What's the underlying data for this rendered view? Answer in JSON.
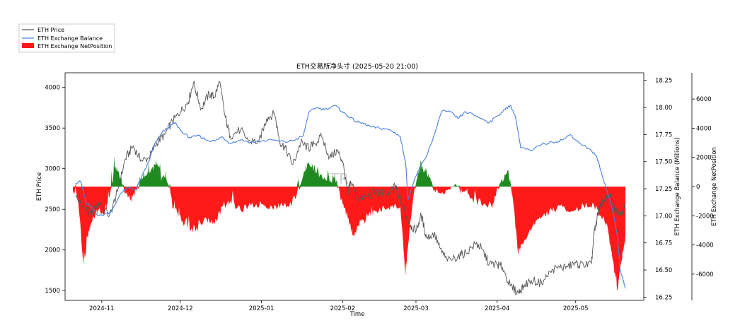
{
  "chart_data": {
    "type": "line",
    "title": "ETH交易所净头寸 (2025-05-20 21:00)",
    "xlabel": "Time",
    "ylabel_left": "ETH Price",
    "ylabel_right1": "ETH Exchange Balance (Millions)",
    "ylabel_right2": "ETH Exchange NetPosition",
    "xlim": [
      "2024-10-18",
      "2025-05-27"
    ],
    "x_ticks": [
      {
        "date": "2024-11-01",
        "label": "2024-11"
      },
      {
        "date": "2024-12-01",
        "label": "2024-12"
      },
      {
        "date": "2025-01-01",
        "label": "2025-01"
      },
      {
        "date": "2025-02-01",
        "label": "2025-02"
      },
      {
        "date": "2025-03-01",
        "label": "2025-03"
      },
      {
        "date": "2025-04-01",
        "label": "2025-04"
      },
      {
        "date": "2025-05-01",
        "label": "2025-05"
      }
    ],
    "price_axis": {
      "ylim": [
        1380,
        4180
      ],
      "ticks": [
        1500,
        2000,
        2500,
        3000,
        3500,
        4000
      ]
    },
    "balance_axis": {
      "ylim": [
        16.22,
        18.32
      ],
      "ticks": [
        "16.25",
        "16.50",
        "16.75",
        "17.00",
        "17.25",
        "17.50",
        "17.75",
        "18.00",
        "18.25"
      ]
    },
    "netposition_axis": {
      "ylim": [
        -7800,
        7800
      ],
      "ticks": [
        -6000,
        -4000,
        -2000,
        0,
        2000,
        4000,
        6000
      ]
    },
    "legend": {
      "placement": "top-left-outside",
      "entries": [
        {
          "label": "ETH Price",
          "color": "#555555",
          "kind": "line"
        },
        {
          "label": "ETH Exchange Balance",
          "color": "#4a7fe0",
          "kind": "line"
        },
        {
          "label": "ETH Exchange NetPosition",
          "color": "#ff1a1a",
          "kind": "patch"
        }
      ]
    },
    "colors": {
      "price": "#555555",
      "balance": "#4a7fe0",
      "net_negative": "#ff1a1a",
      "net_positive": "#1f8a1f"
    },
    "watermark": "TR",
    "series": [
      {
        "name": "ETH Price",
        "axis": "price",
        "points": [
          [
            "2024-10-22",
            2660
          ],
          [
            "2024-10-25",
            2520
          ],
          [
            "2024-10-28",
            2440
          ],
          [
            "2024-10-31",
            2590
          ],
          [
            "2024-11-04",
            2420
          ],
          [
            "2024-11-07",
            2720
          ],
          [
            "2024-11-10",
            3120
          ],
          [
            "2024-11-13",
            3280
          ],
          [
            "2024-11-16",
            3100
          ],
          [
            "2024-11-19",
            3130
          ],
          [
            "2024-11-22",
            3320
          ],
          [
            "2024-11-25",
            3420
          ],
          [
            "2024-11-28",
            3580
          ],
          [
            "2024-12-01",
            3700
          ],
          [
            "2024-12-04",
            3820
          ],
          [
            "2024-12-06",
            4060
          ],
          [
            "2024-12-09",
            3740
          ],
          [
            "2024-12-12",
            3920
          ],
          [
            "2024-12-14",
            3880
          ],
          [
            "2024-12-16",
            4070
          ],
          [
            "2024-12-18",
            3660
          ],
          [
            "2024-12-20",
            3400
          ],
          [
            "2024-12-24",
            3480
          ],
          [
            "2024-12-27",
            3340
          ],
          [
            "2024-12-31",
            3330
          ],
          [
            "2025-01-03",
            3620
          ],
          [
            "2025-01-06",
            3680
          ],
          [
            "2025-01-08",
            3330
          ],
          [
            "2025-01-10",
            3260
          ],
          [
            "2025-01-13",
            3050
          ],
          [
            "2025-01-16",
            3320
          ],
          [
            "2025-01-19",
            3250
          ],
          [
            "2025-01-21",
            3300
          ],
          [
            "2025-01-24",
            3390
          ],
          [
            "2025-01-27",
            3140
          ],
          [
            "2025-01-30",
            3220
          ],
          [
            "2025-02-01",
            3090
          ],
          [
            "2025-02-03",
            2680
          ],
          [
            "2025-02-04",
            2850
          ],
          [
            "2025-02-07",
            2620
          ],
          [
            "2025-02-10",
            2660
          ],
          [
            "2025-02-14",
            2720
          ],
          [
            "2025-02-18",
            2680
          ],
          [
            "2025-02-21",
            2780
          ],
          [
            "2025-02-22",
            2700
          ],
          [
            "2025-02-25",
            2450
          ],
          [
            "2025-02-27",
            2300
          ],
          [
            "2025-03-01",
            2230
          ],
          [
            "2025-03-03",
            2430
          ],
          [
            "2025-03-05",
            2150
          ],
          [
            "2025-03-08",
            2200
          ],
          [
            "2025-03-10",
            2030
          ],
          [
            "2025-03-13",
            1860
          ],
          [
            "2025-03-17",
            1920
          ],
          [
            "2025-03-20",
            1970
          ],
          [
            "2025-03-24",
            2080
          ],
          [
            "2025-03-26",
            2020
          ],
          [
            "2025-03-29",
            1830
          ],
          [
            "2025-04-01",
            1820
          ],
          [
            "2025-04-03",
            1790
          ],
          [
            "2025-04-06",
            1560
          ],
          [
            "2025-04-09",
            1470
          ],
          [
            "2025-04-11",
            1560
          ],
          [
            "2025-04-14",
            1630
          ],
          [
            "2025-04-18",
            1590
          ],
          [
            "2025-04-22",
            1760
          ],
          [
            "2025-04-25",
            1780
          ],
          [
            "2025-04-28",
            1800
          ],
          [
            "2025-05-01",
            1840
          ],
          [
            "2025-05-04",
            1810
          ],
          [
            "2025-05-07",
            1830
          ],
          [
            "2025-05-08",
            2200
          ],
          [
            "2025-05-09",
            2350
          ],
          [
            "2025-05-10",
            2550
          ],
          [
            "2025-05-12",
            2600
          ],
          [
            "2025-05-14",
            2700
          ],
          [
            "2025-05-15",
            2550
          ],
          [
            "2025-05-17",
            2450
          ],
          [
            "2025-05-19",
            2500
          ],
          [
            "2025-05-20",
            2560
          ]
        ]
      },
      {
        "name": "ETH Exchange Balance",
        "axis": "balance",
        "points": [
          [
            "2024-10-22",
            17.3
          ],
          [
            "2024-10-24",
            17.32
          ],
          [
            "2024-10-26",
            17.12
          ],
          [
            "2024-10-28",
            17.08
          ],
          [
            "2024-10-31",
            17.0
          ],
          [
            "2024-11-03",
            17.02
          ],
          [
            "2024-11-05",
            17.05
          ],
          [
            "2024-11-08",
            17.2
          ],
          [
            "2024-11-11",
            17.26
          ],
          [
            "2024-11-14",
            17.24
          ],
          [
            "2024-11-17",
            17.4
          ],
          [
            "2024-11-19",
            17.5
          ],
          [
            "2024-11-21",
            17.65
          ],
          [
            "2024-11-24",
            17.77
          ],
          [
            "2024-11-27",
            17.83
          ],
          [
            "2024-11-29",
            17.86
          ],
          [
            "2024-12-02",
            17.76
          ],
          [
            "2024-12-05",
            17.72
          ],
          [
            "2024-12-08",
            17.74
          ],
          [
            "2024-12-11",
            17.7
          ],
          [
            "2024-12-14",
            17.69
          ],
          [
            "2024-12-17",
            17.73
          ],
          [
            "2024-12-20",
            17.67
          ],
          [
            "2024-12-24",
            17.7
          ],
          [
            "2024-12-28",
            17.68
          ],
          [
            "2025-01-01",
            17.69
          ],
          [
            "2025-01-05",
            17.7
          ],
          [
            "2025-01-10",
            17.68
          ],
          [
            "2025-01-14",
            17.7
          ],
          [
            "2025-01-17",
            17.74
          ],
          [
            "2025-01-19",
            17.95
          ],
          [
            "2025-01-22",
            18.0
          ],
          [
            "2025-01-25",
            17.98
          ],
          [
            "2025-01-29",
            18.02
          ],
          [
            "2025-02-01",
            17.96
          ],
          [
            "2025-02-03",
            17.92
          ],
          [
            "2025-02-06",
            17.87
          ],
          [
            "2025-02-09",
            17.85
          ],
          [
            "2025-02-12",
            17.82
          ],
          [
            "2025-02-15",
            17.81
          ],
          [
            "2025-02-18",
            17.8
          ],
          [
            "2025-02-21",
            17.77
          ],
          [
            "2025-02-23",
            17.73
          ],
          [
            "2025-02-25",
            17.5
          ],
          [
            "2025-02-26",
            17.15
          ],
          [
            "2025-02-28",
            17.3
          ],
          [
            "2025-03-02",
            17.42
          ],
          [
            "2025-03-05",
            17.55
          ],
          [
            "2025-03-08",
            17.75
          ],
          [
            "2025-03-11",
            17.97
          ],
          [
            "2025-03-14",
            17.96
          ],
          [
            "2025-03-17",
            17.9
          ],
          [
            "2025-03-20",
            17.96
          ],
          [
            "2025-03-23",
            17.93
          ],
          [
            "2025-03-26",
            17.9
          ],
          [
            "2025-03-29",
            17.86
          ],
          [
            "2025-04-01",
            17.92
          ],
          [
            "2025-04-04",
            17.98
          ],
          [
            "2025-04-06",
            18.02
          ],
          [
            "2025-04-08",
            17.92
          ],
          [
            "2025-04-10",
            17.63
          ],
          [
            "2025-04-14",
            17.6
          ],
          [
            "2025-04-18",
            17.66
          ],
          [
            "2025-04-22",
            17.68
          ],
          [
            "2025-04-26",
            17.7
          ],
          [
            "2025-04-29",
            17.75
          ],
          [
            "2025-05-02",
            17.68
          ],
          [
            "2025-05-06",
            17.62
          ],
          [
            "2025-05-09",
            17.55
          ],
          [
            "2025-05-11",
            17.38
          ],
          [
            "2025-05-13",
            17.23
          ],
          [
            "2025-05-15",
            17.06
          ],
          [
            "2025-05-17",
            16.8
          ],
          [
            "2025-05-18",
            16.5
          ],
          [
            "2025-05-19",
            16.42
          ],
          [
            "2025-05-20",
            16.33
          ]
        ]
      },
      {
        "name": "ETH Exchange NetPosition",
        "axis": "netposition",
        "points": [
          [
            "2024-10-21",
            -300
          ],
          [
            "2024-10-23",
            -800
          ],
          [
            "2024-10-25",
            -5300
          ],
          [
            "2024-10-27",
            -3000
          ],
          [
            "2024-10-29",
            -2100
          ],
          [
            "2024-10-31",
            -1500
          ],
          [
            "2024-11-02",
            -1900
          ],
          [
            "2024-11-04",
            -700
          ],
          [
            "2024-11-06",
            1300
          ],
          [
            "2024-11-08",
            600
          ],
          [
            "2024-11-10",
            -400
          ],
          [
            "2024-11-12",
            -900
          ],
          [
            "2024-11-14",
            -300
          ],
          [
            "2024-11-16",
            400
          ],
          [
            "2024-11-18",
            900
          ],
          [
            "2024-11-20",
            1200
          ],
          [
            "2024-11-22",
            1500
          ],
          [
            "2024-11-24",
            700
          ],
          [
            "2024-11-26",
            300
          ],
          [
            "2024-11-28",
            -1200
          ],
          [
            "2024-11-30",
            -1800
          ],
          [
            "2024-12-02",
            -2500
          ],
          [
            "2024-12-05",
            -3000
          ],
          [
            "2024-12-08",
            -2800
          ],
          [
            "2024-12-11",
            -2200
          ],
          [
            "2024-12-14",
            -2600
          ],
          [
            "2024-12-17",
            -1400
          ],
          [
            "2024-12-20",
            -1000
          ],
          [
            "2024-12-24",
            -1600
          ],
          [
            "2024-12-28",
            -1300
          ],
          [
            "2025-01-01",
            -1200
          ],
          [
            "2025-01-05",
            -1400
          ],
          [
            "2025-01-09",
            -1300
          ],
          [
            "2025-01-13",
            -1100
          ],
          [
            "2025-01-17",
            800
          ],
          [
            "2025-01-19",
            1700
          ],
          [
            "2025-01-22",
            900
          ],
          [
            "2025-01-26",
            400
          ],
          [
            "2025-01-29",
            700
          ],
          [
            "2025-02-01",
            -1200
          ],
          [
            "2025-02-03",
            -2200
          ],
          [
            "2025-02-05",
            -3300
          ],
          [
            "2025-02-08",
            -2400
          ],
          [
            "2025-02-11",
            -1900
          ],
          [
            "2025-02-14",
            -1700
          ],
          [
            "2025-02-17",
            -1500
          ],
          [
            "2025-02-20",
            -1300
          ],
          [
            "2025-02-23",
            -1400
          ],
          [
            "2025-02-25",
            -6100
          ],
          [
            "2025-02-26",
            -4000
          ],
          [
            "2025-02-28",
            -700
          ],
          [
            "2025-03-02",
            900
          ],
          [
            "2025-03-04",
            1300
          ],
          [
            "2025-03-06",
            600
          ],
          [
            "2025-03-08",
            -200
          ],
          [
            "2025-03-12",
            -500
          ],
          [
            "2025-03-16",
            200
          ],
          [
            "2025-03-19",
            -300
          ],
          [
            "2025-03-22",
            -800
          ],
          [
            "2025-03-26",
            -1200
          ],
          [
            "2025-03-30",
            -1300
          ],
          [
            "2025-04-02",
            200
          ],
          [
            "2025-04-05",
            1100
          ],
          [
            "2025-04-07",
            -800
          ],
          [
            "2025-04-09",
            -4400
          ],
          [
            "2025-04-12",
            -3600
          ],
          [
            "2025-04-15",
            -2500
          ],
          [
            "2025-04-18",
            -2100
          ],
          [
            "2025-04-22",
            -1600
          ],
          [
            "2025-04-26",
            -1400
          ],
          [
            "2025-04-30",
            -1700
          ],
          [
            "2025-05-04",
            -1300
          ],
          [
            "2025-05-08",
            -1300
          ],
          [
            "2025-05-11",
            -2200
          ],
          [
            "2025-05-13",
            -2600
          ],
          [
            "2025-05-15",
            -4900
          ],
          [
            "2025-05-17",
            -7000
          ],
          [
            "2025-05-18",
            -5500
          ],
          [
            "2025-05-19",
            -4500
          ],
          [
            "2025-05-20",
            -3500
          ]
        ]
      }
    ]
  }
}
